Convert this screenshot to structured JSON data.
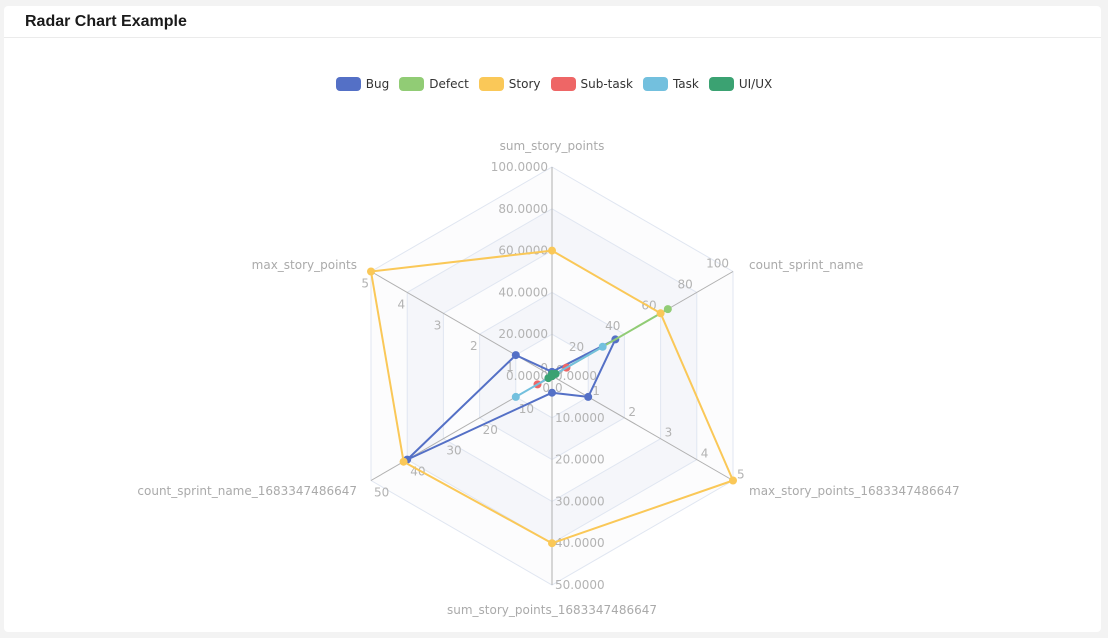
{
  "header": {
    "title": "Radar Chart Example"
  },
  "legend": [
    {
      "name": "Bug",
      "color": "#5470c6"
    },
    {
      "name": "Defect",
      "color": "#91cc75"
    },
    {
      "name": "Story",
      "color": "#fac858"
    },
    {
      "name": "Sub-task",
      "color": "#ee6666"
    },
    {
      "name": "Task",
      "color": "#73c0de"
    },
    {
      "name": "UI/UX",
      "color": "#3ba272"
    }
  ],
  "chart_data": {
    "type": "radar",
    "title": "Radar Chart Example",
    "legend_position": "top",
    "indicators": [
      {
        "name": "sum_story_points",
        "max": 100,
        "ticks": [
          "0.0000",
          "20.0000",
          "40.0000",
          "60.0000",
          "80.0000",
          "100.0000"
        ]
      },
      {
        "name": "count_sprint_name",
        "max": 100,
        "ticks": [
          "0",
          "20",
          "40",
          "60",
          "80",
          "100"
        ]
      },
      {
        "name": "max_story_points_1683347486647",
        "max": 5,
        "ticks": [
          "0",
          "1",
          "2",
          "3",
          "4",
          "5"
        ]
      },
      {
        "name": "sum_story_points_1683347486647",
        "max": 50,
        "ticks": [
          "0.0000",
          "10.0000",
          "20.0000",
          "30.0000",
          "40.0000",
          "50.0000"
        ]
      },
      {
        "name": "count_sprint_name_1683347486647",
        "max": 50,
        "ticks": [
          "0",
          "10",
          "20",
          "30",
          "40",
          "50"
        ]
      },
      {
        "name": "max_story_points",
        "max": 5,
        "ticks": [
          "0",
          "1",
          "2",
          "3",
          "4",
          "5"
        ]
      }
    ],
    "series": [
      {
        "name": "Bug",
        "color": "#5470c6",
        "values": [
          2,
          35,
          1,
          4,
          40,
          1
        ]
      },
      {
        "name": "Defect",
        "color": "#91cc75",
        "values": [
          0,
          64,
          0,
          0,
          0,
          0
        ]
      },
      {
        "name": "Story",
        "color": "#fac858",
        "values": [
          60,
          60,
          5,
          40,
          41,
          5
        ]
      },
      {
        "name": "Sub-task",
        "color": "#ee6666",
        "values": [
          0,
          8,
          0,
          0,
          4,
          0
        ]
      },
      {
        "name": "Task",
        "color": "#73c0de",
        "values": [
          0,
          28,
          0,
          0,
          10,
          0
        ]
      },
      {
        "name": "UI/UX",
        "color": "#3ba272",
        "values": [
          1,
          2,
          0,
          0,
          1,
          0
        ]
      }
    ]
  }
}
